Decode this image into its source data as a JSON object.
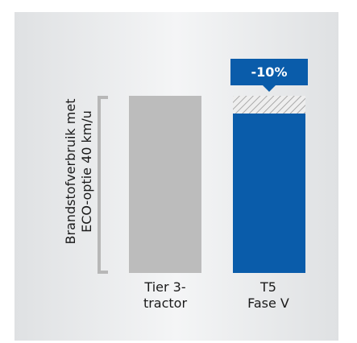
{
  "colors": {
    "panel": "#e8e9eb",
    "bar_grey": "#bcbcbc",
    "bar_blue": "#0a5caa",
    "hatch_grey": "#9a9a9a",
    "bracket": "#b7b7b7",
    "label_text": "#1a1a1a"
  },
  "chart_data": {
    "type": "bar",
    "ylabel_lines": [
      "Brandstofverbruik met",
      "ECO-optie 40 km/u"
    ],
    "categories": [
      {
        "line1": "Tier 3-",
        "line2": "tractor"
      },
      {
        "line1": "T5",
        "line2": "Fase V"
      }
    ],
    "values": [
      100,
      90
    ],
    "ylim": [
      0,
      100
    ],
    "annotation": {
      "text": "-10%",
      "category_index": 1,
      "reduction_from": 100,
      "reduction_to": 90
    }
  }
}
